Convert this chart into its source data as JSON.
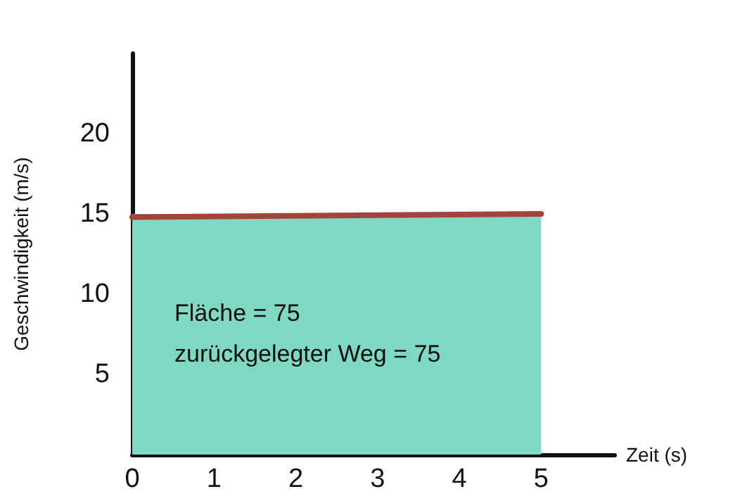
{
  "chart_data": {
    "type": "area",
    "xlabel": "Zeit (s)",
    "ylabel": "Geschwindigkeit (m/s)",
    "x": [
      0,
      5
    ],
    "series": [
      {
        "color": "#80d8c3",
        "values": [
          15,
          15
        ]
      },
      {
        "type": "line",
        "color": "#a3433b",
        "values": [
          14.8,
          15
        ]
      }
    ],
    "xlim": [
      0,
      5.9
    ],
    "xticks": [
      0,
      1,
      2,
      3,
      4,
      5
    ],
    "ylim": [
      0,
      25
    ],
    "yticks": [
      5,
      10,
      15,
      20
    ],
    "annotations": [
      "Fläche = 75",
      "zurückgelegter Weg = 75"
    ],
    "grid": false,
    "marker": "none",
    "line_style": "solid"
  }
}
